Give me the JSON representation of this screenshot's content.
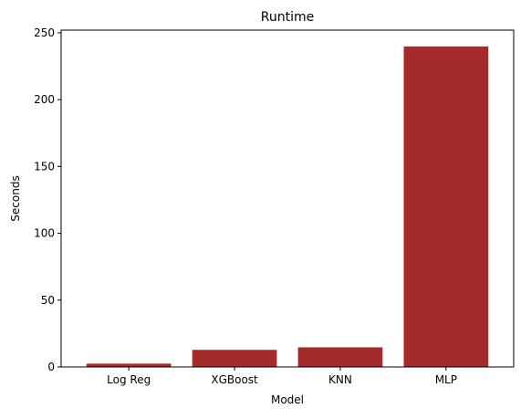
{
  "chart_data": {
    "type": "bar",
    "title": "Runtime",
    "xlabel": "Model",
    "ylabel": "Seconds",
    "categories": [
      "Log Reg",
      "XGBoost",
      "KNN",
      "MLP"
    ],
    "values": [
      2.5,
      12.8,
      14.7,
      239.8
    ],
    "ylim": [
      0,
      252
    ],
    "yticks": [
      0,
      50,
      100,
      150,
      200,
      250
    ],
    "bar_color": "#a52a2a",
    "grid": false,
    "legend": "none"
  }
}
